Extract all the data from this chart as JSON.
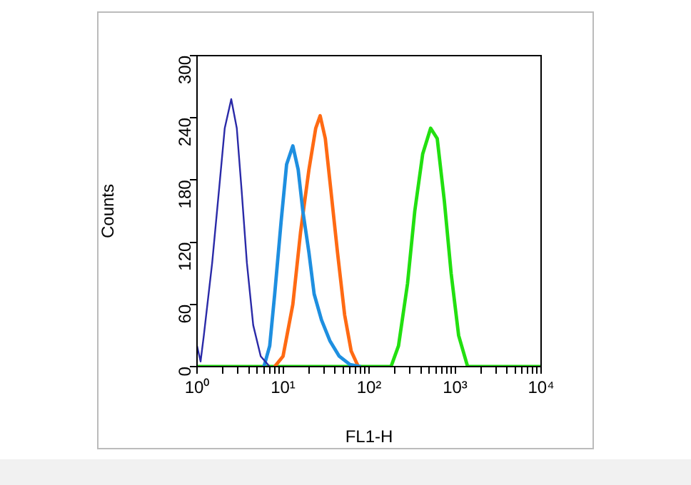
{
  "chart_data": {
    "type": "line",
    "xlabel": "FL1-H",
    "ylabel": "Counts",
    "log": "x",
    "xlim": [
      1,
      10000
    ],
    "ylim": [
      0,
      300
    ],
    "xticks": [
      {
        "value": 1,
        "label": "10⁰"
      },
      {
        "value": 2,
        "label": null
      },
      {
        "value": 3,
        "label": null
      },
      {
        "value": 4,
        "label": null
      },
      {
        "value": 5,
        "label": null
      },
      {
        "value": 6,
        "label": null
      },
      {
        "value": 7,
        "label": null
      },
      {
        "value": 8,
        "label": null
      },
      {
        "value": 9,
        "label": null
      },
      {
        "value": 10,
        "label": "10¹"
      },
      {
        "value": 20,
        "label": null
      },
      {
        "value": 30,
        "label": null
      },
      {
        "value": 40,
        "label": null
      },
      {
        "value": 50,
        "label": null
      },
      {
        "value": 60,
        "label": null
      },
      {
        "value": 70,
        "label": null
      },
      {
        "value": 80,
        "label": null
      },
      {
        "value": 90,
        "label": null
      },
      {
        "value": 100,
        "label": "10²"
      },
      {
        "value": 200,
        "label": null
      },
      {
        "value": 300,
        "label": null
      },
      {
        "value": 400,
        "label": null
      },
      {
        "value": 500,
        "label": null
      },
      {
        "value": 600,
        "label": null
      },
      {
        "value": 700,
        "label": null
      },
      {
        "value": 800,
        "label": null
      },
      {
        "value": 900,
        "label": null
      },
      {
        "value": 1000,
        "label": "10³"
      },
      {
        "value": 2000,
        "label": null
      },
      {
        "value": 3000,
        "label": null
      },
      {
        "value": 4000,
        "label": null
      },
      {
        "value": 5000,
        "label": null
      },
      {
        "value": 6000,
        "label": null
      },
      {
        "value": 7000,
        "label": null
      },
      {
        "value": 8000,
        "label": null
      },
      {
        "value": 9000,
        "label": null
      },
      {
        "value": 10000,
        "label": "10⁴"
      }
    ],
    "yticks": [
      0,
      60,
      120,
      180,
      240,
      300
    ],
    "grid": false,
    "legend": false,
    "marker": "none",
    "line_style": "solid",
    "series": [
      {
        "color": "#2a2aa8",
        "x": [
          1,
          1.1,
          1.2,
          1.5,
          1.8,
          2.1,
          2.5,
          2.9,
          3.3,
          3.8,
          4.5,
          5.5,
          7
        ],
        "values": [
          20,
          5,
          30,
          100,
          170,
          230,
          258,
          230,
          170,
          100,
          40,
          10,
          0
        ]
      },
      {
        "color": "#1e8fe0",
        "x": [
          6,
          7,
          8,
          9.5,
          11,
          13,
          15,
          17,
          20,
          23,
          28,
          35,
          45,
          60,
          80
        ],
        "values": [
          0,
          20,
          70,
          140,
          195,
          213,
          190,
          150,
          110,
          70,
          45,
          25,
          10,
          2,
          0
        ]
      },
      {
        "color": "#ff6a13",
        "x": [
          8,
          10,
          13,
          16,
          20,
          24,
          27,
          31,
          36,
          43,
          52,
          62,
          75
        ],
        "values": [
          0,
          10,
          60,
          130,
          190,
          230,
          242,
          220,
          170,
          110,
          50,
          15,
          0
        ]
      },
      {
        "color": "#22e010",
        "x": [
          1,
          180,
          220,
          280,
          340,
          420,
          520,
          620,
          750,
          900,
          1100,
          1400,
          10000
        ],
        "values": [
          0,
          0,
          20,
          80,
          150,
          205,
          230,
          220,
          160,
          90,
          30,
          0,
          0
        ]
      }
    ]
  }
}
